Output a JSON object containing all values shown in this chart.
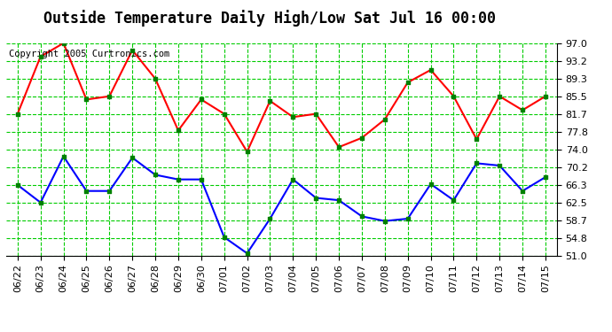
{
  "title": "Outside Temperature Daily High/Low Sat Jul 16 00:00",
  "copyright": "Copyright 2005 Curtronics.com",
  "x_labels": [
    "06/22",
    "06/23",
    "06/24",
    "06/25",
    "06/26",
    "06/27",
    "06/28",
    "06/29",
    "06/30",
    "07/01",
    "07/02",
    "07/03",
    "07/04",
    "07/05",
    "07/06",
    "07/07",
    "07/08",
    "07/09",
    "07/10",
    "07/11",
    "07/12",
    "07/13",
    "07/14",
    "07/15"
  ],
  "high_values": [
    81.7,
    94.1,
    97.0,
    84.8,
    85.5,
    95.5,
    89.3,
    78.1,
    84.8,
    81.7,
    73.5,
    84.5,
    81.0,
    81.7,
    74.5,
    76.5,
    80.5,
    88.5,
    91.2,
    85.5,
    76.2,
    85.5,
    82.5,
    85.5
  ],
  "low_values": [
    66.3,
    62.5,
    72.5,
    65.0,
    65.0,
    72.2,
    68.5,
    67.5,
    67.5,
    55.0,
    51.5,
    59.0,
    67.5,
    63.5,
    63.0,
    59.5,
    58.5,
    59.0,
    66.5,
    63.0,
    71.0,
    70.5,
    65.0,
    68.0
  ],
  "y_ticks": [
    51.0,
    54.8,
    58.7,
    62.5,
    66.3,
    70.2,
    74.0,
    77.8,
    81.7,
    85.5,
    89.3,
    93.2,
    97.0
  ],
  "y_min": 51.0,
  "y_max": 97.0,
  "high_color": "#ff0000",
  "low_color": "#0000ff",
  "marker_color": "#008000",
  "bg_color": "#ffffff",
  "grid_color": "#00cc00",
  "title_fontsize": 12,
  "copyright_fontsize": 7.5,
  "tick_fontsize": 8
}
